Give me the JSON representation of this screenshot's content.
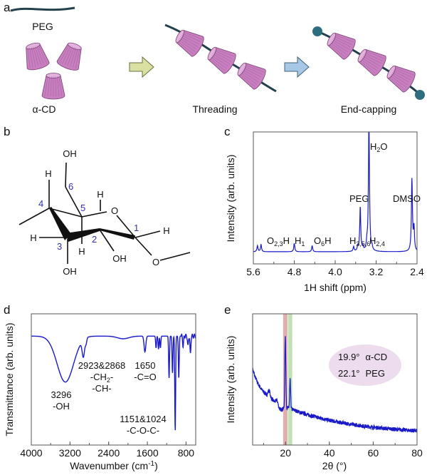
{
  "panels": {
    "a": "a",
    "b": "b",
    "c": "c",
    "d": "d",
    "e": "e"
  },
  "schematic": {
    "peg_label": "PEG",
    "cd_label": "α-CD",
    "step1": "Threading",
    "step2": "End-capping",
    "colors": {
      "cyclodextrin": "#c77fbf",
      "peg_chain": "#23404e",
      "cap": "#2e6d7e",
      "arrow1": "#d9e0a2",
      "arrow2": "#a7c7e6"
    }
  },
  "structure": {
    "atoms": {
      "oh_top": "OH",
      "h_c4": "H",
      "h_c3": "H",
      "h_c5": "H",
      "h_top": "H",
      "o_ring": "O",
      "h_c1": "H",
      "o_glyc": "O",
      "oh_c2": "OH",
      "oh_c3": "OH"
    },
    "numbers": {
      "n1": "1",
      "n2": "2",
      "n3": "3",
      "n4": "4",
      "n5": "5",
      "n6": "6"
    }
  },
  "chart_data": [
    {
      "id": "c",
      "type": "line",
      "xlabel": "1H shift (ppm)",
      "ylabel": "Intensity (arb. units)",
      "xlim": [
        5.6,
        2.4
      ],
      "xticks": [
        "5.6",
        "4.8",
        "4.0",
        "3.2",
        "2.4"
      ],
      "color": "#1a1ac8",
      "peaks": [
        {
          "x": 5.52,
          "y": 5
        },
        {
          "x": 5.45,
          "y": 6
        },
        {
          "x": 4.8,
          "y": 7
        },
        {
          "x": 4.45,
          "y": 5
        },
        {
          "x": 3.64,
          "y": 4
        },
        {
          "x": 3.56,
          "y": 4
        },
        {
          "x": 3.46,
          "y": 3
        },
        {
          "x": 3.51,
          "y": 37
        },
        {
          "x": 3.38,
          "y": 6
        },
        {
          "x": 3.34,
          "y": 110
        },
        {
          "x": 3.28,
          "y": 3
        },
        {
          "x": 2.5,
          "y": 60
        },
        {
          "x": 2.46,
          "y": 19
        }
      ],
      "annotations": [
        {
          "main": "O",
          "sub": "2,3",
          "tail": "H"
        },
        {
          "main": "H",
          "sub": "1",
          "tail": ""
        },
        {
          "main": "O",
          "sub": "6",
          "tail": "H"
        },
        {
          "main": "H",
          "sub": "3,5,6",
          "tail": ""
        },
        {
          "main": "PEG",
          "sub": "",
          "tail": ""
        },
        {
          "main": "H",
          "sub": "2",
          "tail": "O"
        },
        {
          "main": "H",
          "sub": "2,4",
          "tail": ""
        },
        {
          "main": "DMSO",
          "sub": "",
          "tail": ""
        }
      ]
    },
    {
      "id": "d",
      "type": "line",
      "xlabel": "Wavenumber (cm",
      "xlabel_sup": "-1",
      "xlabel_end": ")",
      "ylabel": "Transmittance (arb. units)",
      "xlim": [
        4000,
        600
      ],
      "xticks": [
        "4000",
        "3200",
        "2400",
        "1600",
        "800"
      ],
      "color": "#1a1ac8",
      "baseline": 83,
      "bands": [
        {
          "x": 3296,
          "depth": 35
        },
        {
          "x": 2923,
          "depth": 13
        },
        {
          "x": 2868,
          "depth": 4
        },
        {
          "x": 2100,
          "depth": 2
        },
        {
          "x": 1650,
          "depth": 12
        },
        {
          "x": 1420,
          "depth": 9
        },
        {
          "x": 1370,
          "depth": 10
        },
        {
          "x": 1330,
          "depth": 9
        },
        {
          "x": 1151,
          "depth": 32
        },
        {
          "x": 1080,
          "depth": 28
        },
        {
          "x": 1024,
          "depth": 72
        },
        {
          "x": 950,
          "depth": 32
        },
        {
          "x": 860,
          "depth": 8
        },
        {
          "x": 760,
          "depth": 8
        },
        {
          "x": 710,
          "depth": 14
        }
      ],
      "annotations": [
        {
          "line1": "3296",
          "line2": "-OH"
        },
        {
          "line1": "2923&2868",
          "line2a": "-CH",
          "line2sub": "2",
          "line2b": "-",
          "line3": "-CH-"
        },
        {
          "line1": "1650",
          "line2": "-C=O"
        },
        {
          "line1": "1151&1024",
          "line2": "-C-O-C-"
        }
      ]
    },
    {
      "id": "e",
      "type": "line",
      "xlabel": "2θ (°)",
      "ylabel": "Intensity (arb. units)",
      "xlim": [
        5,
        80
      ],
      "xticks": [
        "20",
        "40",
        "60",
        "80"
      ],
      "color": "#1a1ac8",
      "peaks": [
        {
          "x": 19.9,
          "y": 55
        },
        {
          "x": 22.1,
          "y": 22
        },
        {
          "x": 12.5,
          "y": 5
        },
        {
          "x": 16.1,
          "y": 4
        }
      ],
      "highlight": [
        {
          "x": 19.9,
          "color": "#d9a0a0"
        },
        {
          "x": 22.1,
          "color": "#b6dca8"
        }
      ],
      "legend": {
        "row1_angle": "19.9°",
        "row1_name": "α-CD",
        "row2_angle": "22.1°",
        "row2_name": "PEG",
        "fill": "#ecdcee"
      }
    }
  ]
}
